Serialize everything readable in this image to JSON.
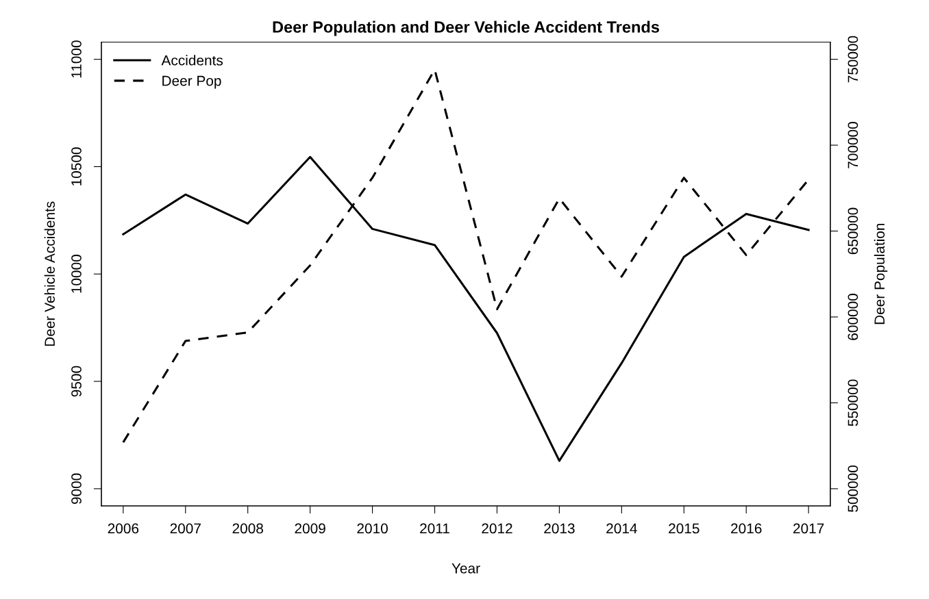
{
  "chart_data": {
    "type": "line",
    "title": "Deer Population and Deer Vehicle Accident Trends",
    "xlabel": "Year",
    "ylabel": "Deer Vehicle Accidents",
    "y2label": "Deer Population",
    "categories": [
      "2006",
      "2007",
      "2008",
      "2009",
      "2010",
      "2011",
      "2012",
      "2013",
      "2014",
      "2015",
      "2016",
      "2017"
    ],
    "series": [
      {
        "name": "Accidents",
        "color": "#000000",
        "line_style": "solid",
        "values": [
          10185,
          10370,
          10235,
          10545,
          10210,
          10135,
          9725,
          9130,
          9585,
          10080,
          10280,
          10205
        ]
      },
      {
        "name": "Deer Pop",
        "color": "#000000",
        "line_style": "dashed",
        "axis": "y2",
        "values": [
          527000,
          586000,
          591000,
          630000,
          681000,
          744000,
          604500,
          669000,
          623500,
          681000,
          636000,
          680000
        ]
      }
    ],
    "ylim": [
      8920,
      11080
    ],
    "yticks": [
      9000,
      9500,
      10000,
      10500,
      11000
    ],
    "y2lim": [
      490000,
      760000
    ],
    "y2ticks": [
      500000,
      550000,
      600000,
      650000,
      700000,
      750000
    ],
    "grid": false,
    "legend": "top left",
    "marker": "none"
  }
}
